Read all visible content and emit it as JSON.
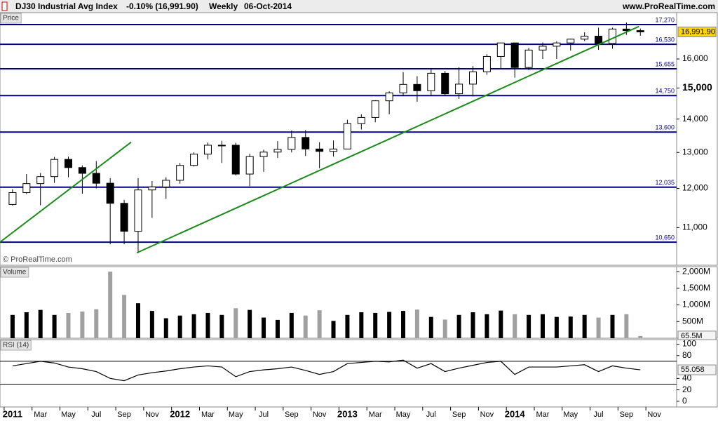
{
  "header": {
    "symbol": "DJ30 Industrial Avg Index",
    "change": "-0.10% (16,991.90)",
    "period": "Weekly",
    "date": "06-Oct-2014",
    "site": "www.ProRealTime.com"
  },
  "chart_data": [
    {
      "type": "candlestick",
      "title": "Price",
      "watermark": "© ProRealTime.com",
      "x": [
        0,
        1,
        2,
        3,
        4,
        5,
        6,
        7,
        8,
        9,
        10,
        11,
        12,
        13,
        14,
        15,
        16,
        17,
        18,
        19,
        20,
        21,
        22,
        23,
        24,
        25,
        26,
        27,
        28,
        29,
        30,
        31,
        32,
        33,
        34,
        35,
        36,
        37,
        38,
        39,
        40,
        41,
        42,
        43,
        44,
        45
      ],
      "open": [
        11580,
        11890,
        12130,
        12320,
        12800,
        12570,
        12410,
        12140,
        11610,
        10910,
        11960,
        12040,
        12220,
        12630,
        12950,
        13210,
        13210,
        12390,
        12880,
        13010,
        13090,
        13440,
        13100,
        13030,
        13100,
        13860,
        14050,
        14580,
        14840,
        15120,
        14910,
        15500,
        14810,
        15130,
        15550,
        16090,
        16580,
        15700,
        16320,
        16460,
        16580,
        16720,
        16830,
        16560,
        17100,
        17040
      ],
      "high": [
        11980,
        12390,
        12420,
        12870,
        12880,
        12630,
        12750,
        12280,
        11700,
        12280,
        12200,
        12300,
        12700,
        13000,
        13290,
        13340,
        13280,
        12960,
        13080,
        13330,
        13650,
        13660,
        13300,
        13350,
        13980,
        14150,
        14600,
        14890,
        15540,
        15400,
        15660,
        15580,
        15710,
        15750,
        16170,
        16590,
        16590,
        16400,
        16600,
        16640,
        16740,
        16980,
        17150,
        17150,
        17350,
        17120
      ],
      "low": [
        11550,
        11850,
        11560,
        12150,
        12300,
        11860,
        12000,
        10600,
        10600,
        10400,
        11240,
        11730,
        12130,
        12600,
        12800,
        12700,
        12350,
        12060,
        12450,
        12840,
        13000,
        12900,
        12550,
        12880,
        13100,
        13680,
        13900,
        14150,
        14730,
        14550,
        14740,
        14760,
        14640,
        14720,
        15450,
        15650,
        15350,
        15600,
        16000,
        16000,
        16300,
        16650,
        16330,
        16370,
        16880,
        16850
      ],
      "close": [
        11890,
        12130,
        12320,
        12800,
        12570,
        12410,
        12140,
        11610,
        10910,
        11960,
        12040,
        12220,
        12630,
        12950,
        13210,
        13210,
        12390,
        12880,
        13010,
        13090,
        13440,
        13100,
        13030,
        13100,
        13860,
        14050,
        14580,
        14840,
        15120,
        14910,
        15500,
        14810,
        15130,
        15550,
        16090,
        16580,
        15700,
        16320,
        16460,
        16580,
        16720,
        16830,
        16560,
        17100,
        17040,
        16991.9
      ],
      "up_color": "#ffffff",
      "down_color": "#000000",
      "current_label": "16,991.90",
      "current_color": "#ffd700",
      "xlim": [
        -0.9,
        47.6
      ],
      "ylim": [
        10118,
        17735
      ],
      "log": true,
      "yticks": [
        {
          "value": 11000,
          "label": "11,000"
        },
        {
          "value": 12000,
          "label": "12,000"
        },
        {
          "value": 13000,
          "label": "13,000"
        },
        {
          "value": 14000,
          "label": "14,000"
        },
        {
          "value": 15000,
          "label": "15,000"
        },
        {
          "value": 16000,
          "label": "16,000"
        }
      ],
      "levels": [
        {
          "value": 17270,
          "label": "17,270"
        },
        {
          "value": 16530,
          "label": "16,530"
        },
        {
          "value": 15655,
          "label": "15,655"
        },
        {
          "value": 14750,
          "label": "14,750"
        },
        {
          "value": 13600,
          "label": "13,600"
        },
        {
          "value": 12035,
          "label": "12,035"
        },
        {
          "value": 10650,
          "label": "10,650"
        }
      ],
      "level_color": "#000080",
      "trendlines": [
        {
          "x": [
            -0.9,
            8.5
          ],
          "y": [
            10650,
            13300
          ]
        },
        {
          "x": [
            8.9,
            44.9
          ],
          "y": [
            10400,
            17200
          ]
        }
      ],
      "trendline_color": "#1a8c1a"
    },
    {
      "type": "bar",
      "title": "Volume",
      "values": [
        700,
        780,
        850,
        700,
        760,
        800,
        870,
        2000,
        1300,
        1050,
        820,
        600,
        680,
        720,
        760,
        700,
        900,
        850,
        620,
        550,
        760,
        680,
        840,
        520,
        700,
        780,
        760,
        790,
        820,
        860,
        640,
        560,
        700,
        780,
        720,
        830,
        720,
        700,
        720,
        640,
        650,
        700,
        620,
        700,
        720,
        65.5
      ],
      "current_label": "65.5M",
      "up_color": "#000000",
      "down_color": "#a0a0a0",
      "ylim": [
        0,
        2150
      ],
      "yticks": [
        {
          "value": 500,
          "label": "500M"
        },
        {
          "value": 1000,
          "label": "1,000M"
        },
        {
          "value": 1500,
          "label": "1,500M"
        },
        {
          "value": 2000,
          "label": "2,000M"
        }
      ]
    },
    {
      "type": "line",
      "title": "RSI (14)",
      "values": [
        62,
        66,
        70,
        67,
        60,
        57,
        52,
        40,
        36,
        46,
        50,
        53,
        57,
        60,
        62,
        60,
        43,
        52,
        55,
        57,
        60,
        54,
        47,
        52,
        66,
        68,
        70,
        69,
        72,
        58,
        66,
        52,
        58,
        63,
        68,
        70,
        47,
        60,
        60,
        60,
        62,
        64,
        52,
        62,
        58,
        55.058
      ],
      "current_label": "55.058",
      "color": "#000000",
      "ylim": [
        -10,
        108
      ],
      "yticks": [
        0,
        20,
        40,
        80,
        100
      ],
      "levels": [
        30,
        70
      ],
      "xticks": [
        {
          "value": 0,
          "label": "2011"
        },
        {
          "value": 2,
          "label": "Mar"
        },
        {
          "value": 4,
          "label": "May"
        },
        {
          "value": 6,
          "label": "Jul"
        },
        {
          "value": 8,
          "label": "Sep"
        },
        {
          "value": 10,
          "label": "Nov"
        },
        {
          "value": 12,
          "label": "2012"
        },
        {
          "value": 14,
          "label": "Mar"
        },
        {
          "value": 16,
          "label": "May"
        },
        {
          "value": 18,
          "label": "Jul"
        },
        {
          "value": 20,
          "label": "Sep"
        },
        {
          "value": 22,
          "label": "Nov"
        },
        {
          "value": 24,
          "label": "2013"
        },
        {
          "value": 26,
          "label": "Mar"
        },
        {
          "value": 28,
          "label": "May"
        },
        {
          "value": 30,
          "label": "Jul"
        },
        {
          "value": 32,
          "label": "Sep"
        },
        {
          "value": 34,
          "label": "Nov"
        },
        {
          "value": 36,
          "label": "2014"
        },
        {
          "value": 38,
          "label": "Mar"
        },
        {
          "value": 40,
          "label": "May"
        },
        {
          "value": 42,
          "label": "Jul"
        },
        {
          "value": 44,
          "label": "Sep"
        },
        {
          "value": 46,
          "label": "Nov"
        }
      ]
    }
  ]
}
